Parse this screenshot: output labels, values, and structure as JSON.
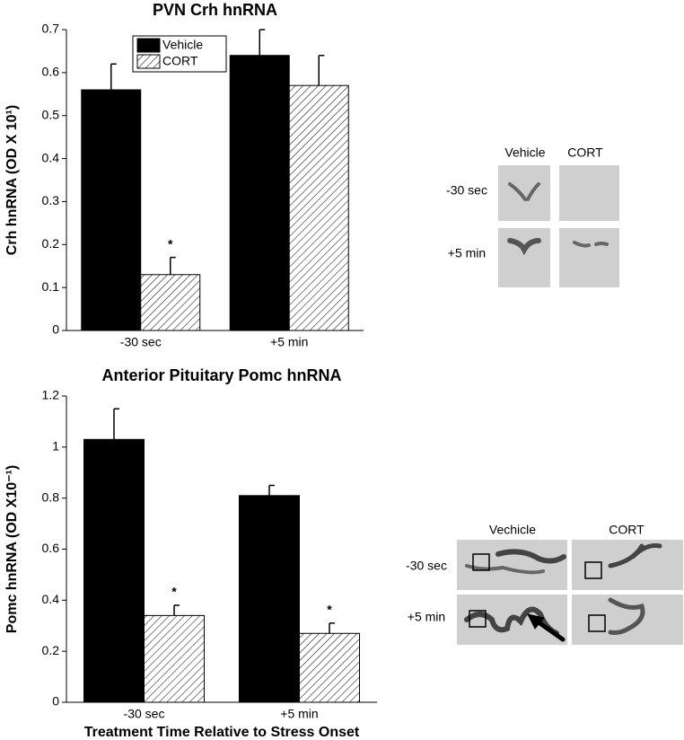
{
  "chart_data": [
    {
      "type": "bar",
      "title": "PVN Crh hnRNA",
      "y_label": "Crh hnRNA (OD X 10¹)",
      "categories": [
        "-30 sec",
        "+5 min"
      ],
      "series": [
        {
          "name": "Vehicle",
          "color": "#000000",
          "values": [
            0.56,
            0.64
          ],
          "errors": [
            0.06,
            0.06
          ]
        },
        {
          "name": "CORT",
          "color": "#ffffff",
          "hatch": true,
          "values": [
            0.13,
            0.57
          ],
          "errors": [
            0.04,
            0.07
          ],
          "annotations": [
            "*",
            null
          ]
        }
      ],
      "ylim": [
        0,
        0.7
      ],
      "yticks": [
        0,
        0.1,
        0.2,
        0.3,
        0.4,
        0.5,
        0.6,
        0.7
      ],
      "legend": "upper center"
    },
    {
      "type": "bar",
      "title": "Anterior Pituitary Pomc hnRNA",
      "y_label": "Pomc hnRNA (OD X10⁻¹)",
      "x_label": "Treatment Time Relative to Stress Onset",
      "categories": [
        "-30 sec",
        "+5 min"
      ],
      "series": [
        {
          "color": "#000000",
          "values": [
            1.03,
            0.81
          ],
          "errors": [
            0.12,
            0.04
          ]
        },
        {
          "color": "#ffffff",
          "hatch": true,
          "values": [
            0.34,
            0.27
          ],
          "errors": [
            0.04,
            0.04
          ],
          "annotations": [
            "*",
            "*"
          ]
        }
      ],
      "ylim": [
        0,
        1.2
      ],
      "yticks": [
        0,
        0.2,
        0.4,
        0.6,
        0.8,
        1,
        1.2
      ]
    }
  ],
  "panels": [
    {
      "columns": [
        "Vehicle",
        "CORT"
      ],
      "rows": [
        "-30 sec",
        "+5 min"
      ]
    },
    {
      "columns": [
        "Vechicle",
        "CORT"
      ],
      "rows": [
        "-30 sec",
        "+5 min"
      ]
    }
  ]
}
